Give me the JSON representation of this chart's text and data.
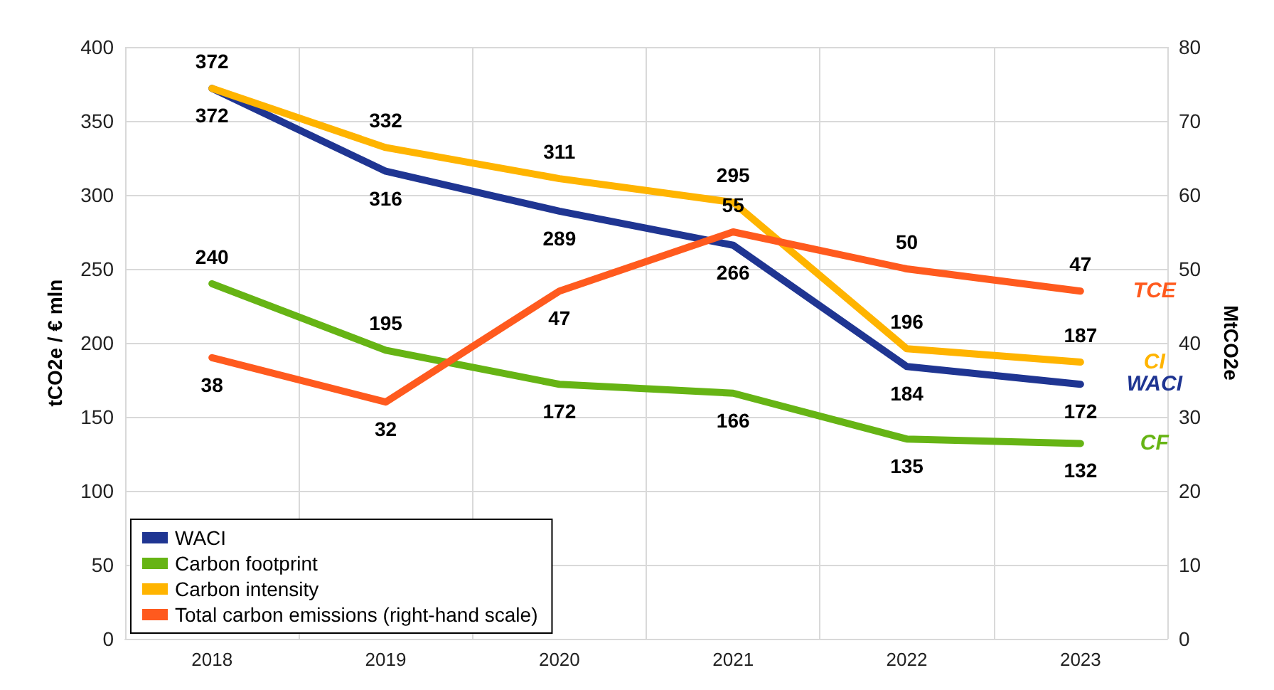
{
  "chart_data": {
    "type": "line",
    "categories": [
      "2018",
      "2019",
      "2020",
      "2021",
      "2022",
      "2023"
    ],
    "series": [
      {
        "name": "WACI",
        "color": "#1f3592",
        "values": [
          372,
          316,
          289,
          266,
          184,
          172
        ]
      },
      {
        "name": "Carbon footprint",
        "color": "#66b414",
        "values": [
          240,
          195,
          172,
          166,
          135,
          132
        ]
      },
      {
        "name": "Carbon intensity",
        "color": "#ffb400",
        "values": [
          372,
          332,
          311,
          295,
          196,
          187
        ]
      },
      {
        "name": "Total carbon emissions (right-hand scale)",
        "color": "#ff5a1e",
        "axis": "y2",
        "values": [
          38,
          32,
          47,
          55,
          50,
          47
        ]
      }
    ],
    "ylabel": "tCO2e / € mln",
    "y2label": "MtCO2e",
    "ylim": [
      0,
      400
    ],
    "yticks": [
      0,
      50,
      100,
      150,
      200,
      250,
      300,
      350,
      400
    ],
    "y2lim": [
      0,
      80
    ],
    "y2ticks": [
      0,
      10,
      20,
      30,
      40,
      50,
      60,
      70,
      80
    ],
    "annotations": [
      "WACI",
      "CF",
      "CI",
      "TCE"
    ],
    "data_labels": true,
    "grid": true,
    "legend": "bottom left",
    "marker": "none",
    "line_style": "solid"
  }
}
